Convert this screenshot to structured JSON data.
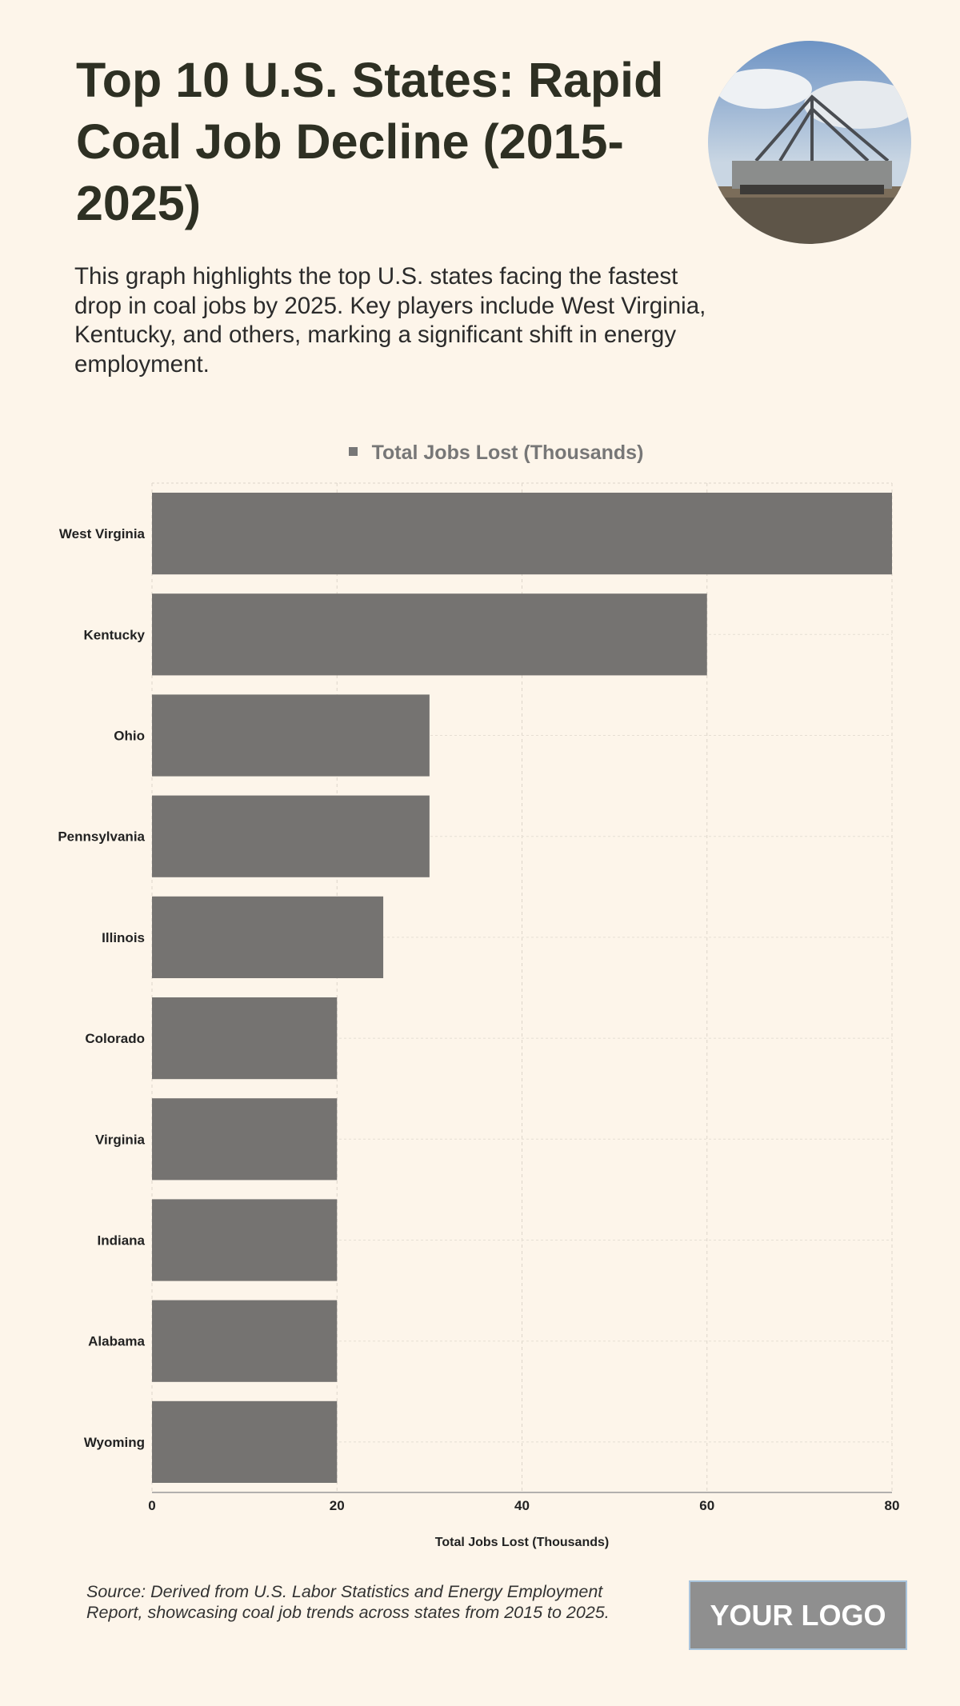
{
  "header": {
    "title": "Top 10 U.S. States: Rapid Coal Job Decline (2015-2025)",
    "subtitle": "This graph highlights the top U.S. states facing the fastest drop in coal jobs by 2025. Key players include West Virginia, Kentucky, and others, marking a significant shift in energy employment.",
    "photo_icon": "coal-mining-excavator-photo"
  },
  "chart_data": {
    "type": "bar",
    "orientation": "horizontal",
    "categories": [
      "West Virginia",
      "Kentucky",
      "Ohio",
      "Pennsylvania",
      "Illinois",
      "Colorado",
      "Virginia",
      "Indiana",
      "Alabama",
      "Wyoming"
    ],
    "series": [
      {
        "name": "Total Jobs Lost (Thousands)",
        "values": [
          80,
          60,
          30,
          30,
          25,
          20,
          20,
          20,
          20,
          20
        ],
        "color": "#757371"
      }
    ],
    "xlabel": "Total Jobs Lost (Thousands)",
    "ylabel": "",
    "xlim": [
      0,
      80
    ],
    "xticks": [
      "0",
      "20",
      "40",
      "60",
      "80"
    ],
    "grid": true,
    "legend": "top-center"
  },
  "footer": {
    "source": "Source: Derived from U.S. Labor Statistics and Energy Employment Report, showcasing coal job trends across states from 2015 to 2025.",
    "logo": "YOUR LOGO"
  }
}
